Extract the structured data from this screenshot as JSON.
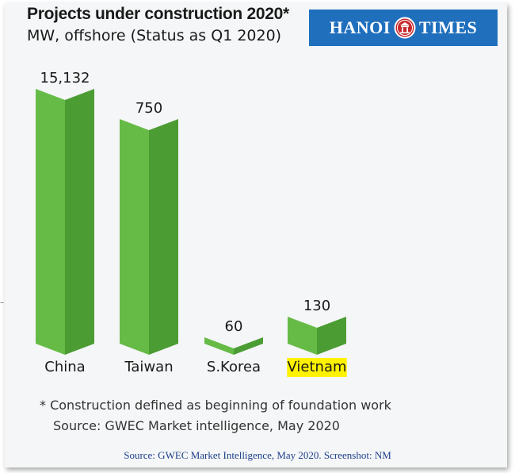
{
  "logo": {
    "left_text": "HANOI",
    "right_text": "TIMES"
  },
  "notes": {
    "definition": "* Construction defined as beginning of foundation work",
    "source": "Source: GWEC Market intelligence, May 2020"
  },
  "credit": "Source: GWEC Market Intelligence, May 2020. Screenshot: NM",
  "colors": {
    "bar_light": "#66bb46",
    "bar_dark": "#4c9c34",
    "highlight": "#fff200"
  },
  "chart_data": {
    "type": "bar",
    "title": "Projects under construction 2020*",
    "subtitle": "MW, offshore (Status as Q1 2020)",
    "categories": [
      "China",
      "Taiwan",
      "S.Korea",
      "Vietnam"
    ],
    "values": [
      15132,
      750,
      60,
      130
    ],
    "value_labels": [
      "15,132",
      "750",
      "60",
      "130"
    ],
    "highlighted_category": "Vietnam",
    "scale": "non-linear (pictorial bar heights)",
    "grid": false,
    "legend": "none"
  }
}
